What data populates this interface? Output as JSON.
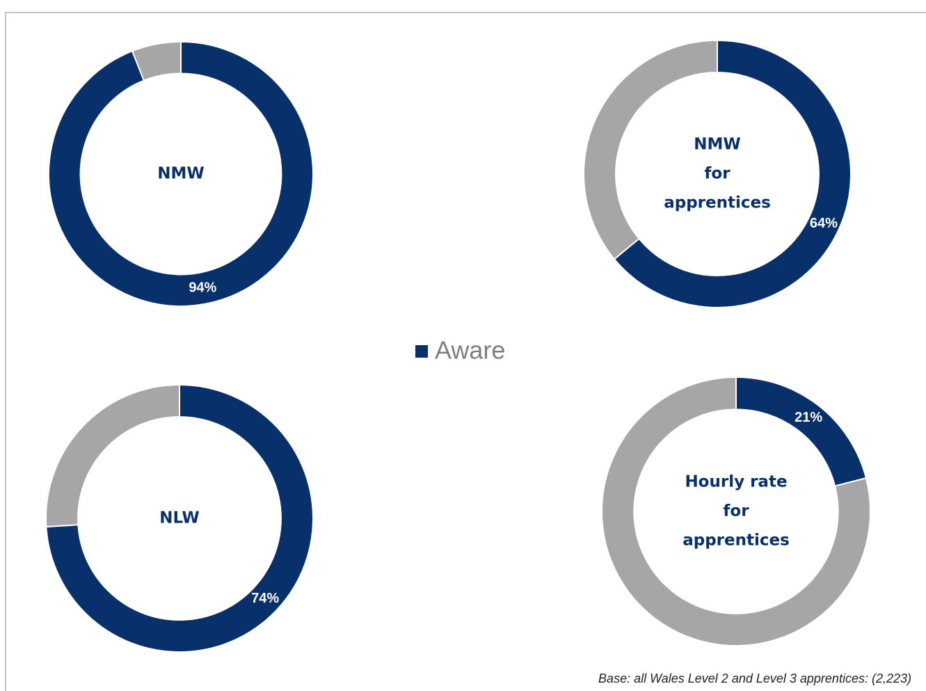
{
  "legend": [
    "Aware"
  ],
  "colors": [
    "#08306b",
    "#a6a6a6"
  ],
  "base_note": "Base: all Wales Level 2 and Level 3 apprentices: (2,223)",
  "chart_data": [
    {
      "type": "donut",
      "center_label": [
        "NMW"
      ],
      "values": [
        94,
        6
      ],
      "value_labels": [
        "94%",
        null
      ]
    },
    {
      "type": "donut",
      "center_label": [
        "NMW",
        "for",
        "apprentices"
      ],
      "values": [
        64,
        36
      ],
      "value_labels": [
        "64%",
        null
      ]
    },
    {
      "type": "donut",
      "center_label": [
        "NLW"
      ],
      "values": [
        74,
        26
      ],
      "value_labels": [
        "74%",
        null
      ]
    },
    {
      "type": "donut",
      "center_label": [
        "Hourly rate",
        "for",
        "apprentices"
      ],
      "values": [
        21,
        79
      ],
      "value_labels": [
        "21%",
        null
      ]
    }
  ]
}
